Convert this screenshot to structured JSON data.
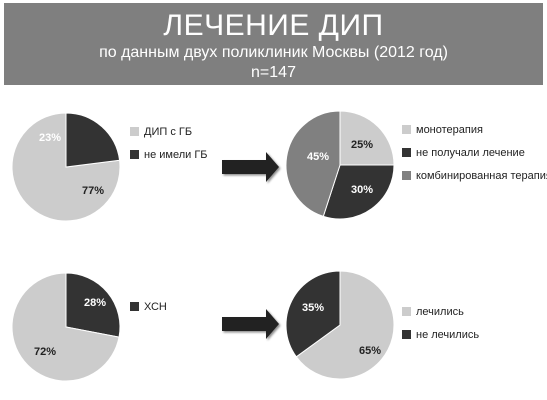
{
  "header": {
    "title": "ЛЕЧЕНИЕ ДИП",
    "subtitle": "по данным двух поликлиник Москвы (2012 год)",
    "n": "n=147"
  },
  "colors": {
    "header_bg": "#7f7f7f",
    "light": "#cccccc",
    "dark": "#333333",
    "mid": "#808080"
  },
  "chart_data": [
    {
      "type": "pie",
      "slices": [
        {
          "label": "ДИП с ГБ",
          "value": 77,
          "text": "77%",
          "color": "#cccccc"
        },
        {
          "label": "не имели ГБ",
          "value": 23,
          "text": "23%",
          "color": "#333333"
        }
      ]
    },
    {
      "type": "pie",
      "slices": [
        {
          "label": "монотерапия",
          "value": 25,
          "text": "25%",
          "color": "#cccccc"
        },
        {
          "label": "не получали лечение",
          "value": 30,
          "text": "30%",
          "color": "#333333"
        },
        {
          "label": "комбинированная терапия",
          "value": 45,
          "text": "45%",
          "color": "#808080"
        }
      ]
    },
    {
      "type": "pie",
      "slices": [
        {
          "label": "ХСН",
          "value": 28,
          "text": "28%",
          "color": "#333333"
        },
        {
          "label": "",
          "value": 72,
          "text": "72%",
          "color": "#cccccc"
        }
      ]
    },
    {
      "type": "pie",
      "slices": [
        {
          "label": "лечились",
          "value": 65,
          "text": "65%",
          "color": "#cccccc"
        },
        {
          "label": "не лечились",
          "value": 35,
          "text": "35%",
          "color": "#333333"
        }
      ]
    }
  ]
}
